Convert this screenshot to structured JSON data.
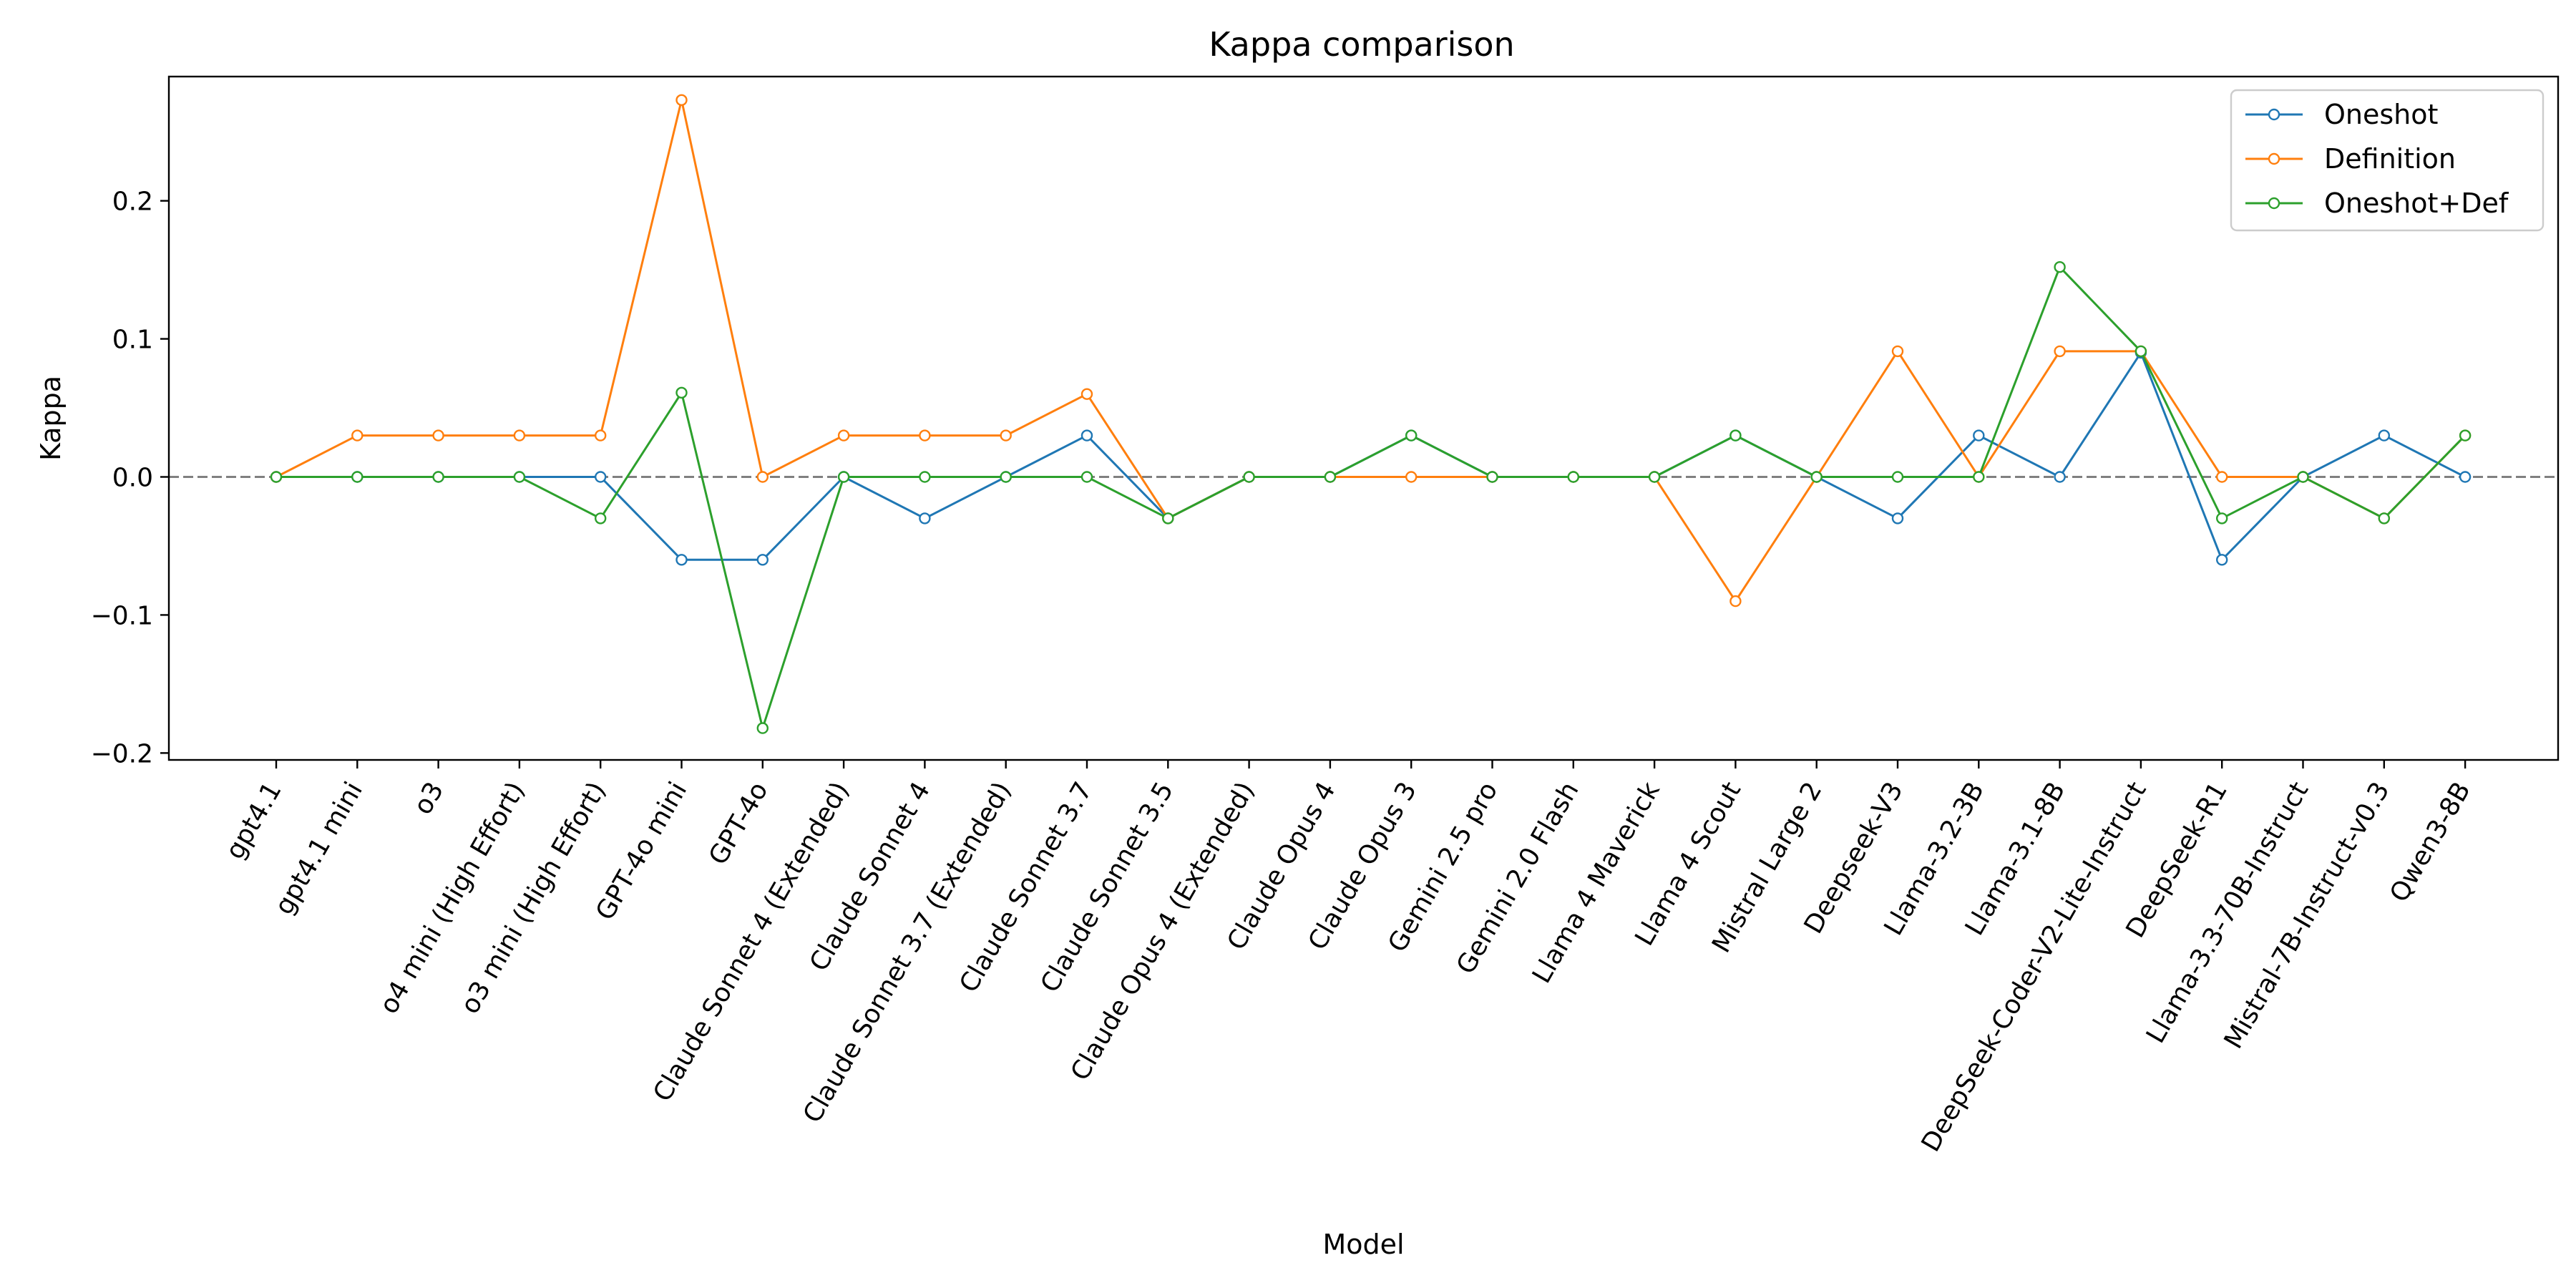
{
  "chart_data": {
    "type": "line",
    "title": "Kappa comparison",
    "xlabel": "Model",
    "ylabel": "Kappa",
    "ylim": [
      -0.205,
      0.29
    ],
    "yticks": [
      -0.2,
      -0.1,
      0.0,
      0.1,
      0.2
    ],
    "ytick_labels": [
      "−0.2",
      "−0.1",
      "0.0",
      "0.1",
      "0.2"
    ],
    "reference_line": {
      "y": 0.0,
      "style": "dashed",
      "color": "#808080"
    },
    "grid": false,
    "legend_position": "top-right",
    "categories": [
      "gpt4.1",
      "gpt4.1 mini",
      "o3",
      "o4 mini (High Effort)",
      "o3 mini (High Effort)",
      "GPT-4o mini",
      "GPT-4o",
      "Claude Sonnet 4 (Extended)",
      "Claude Sonnet 4",
      "Claude Sonnet 3.7 (Extended)",
      "Claude Sonnet 3.7",
      "Claude Sonnet 3.5",
      "Claude Opus 4 (Extended)",
      "Claude Opus 4",
      "Claude Opus 3",
      "Gemini 2.5 pro",
      "Gemini 2.0 Flash",
      "Llama 4 Maverick",
      "Llama 4 Scout",
      "Mistral Large 2",
      "Deepseek-V3",
      "Llama-3.2-3B",
      "Llama-3.1-8B",
      "DeepSeek-Coder-V2-Lite-Instruct",
      "DeepSeek-R1",
      "Llama-3.3-70B-Instruct",
      "Mistral-7B-Instruct-v0.3",
      "Qwen3-8B"
    ],
    "series": [
      {
        "name": "Oneshot",
        "color": "#1f77b4",
        "values": [
          0,
          0,
          0,
          0,
          0,
          -0.06,
          -0.06,
          0,
          -0.03,
          0,
          0.03,
          -0.03,
          0,
          0,
          0.03,
          0,
          0,
          0,
          0.03,
          0,
          -0.03,
          0.03,
          0,
          0.09,
          -0.06,
          0,
          0.03,
          0
        ]
      },
      {
        "name": "Definition",
        "color": "#ff7f0e",
        "values": [
          0,
          0.03,
          0.03,
          0.03,
          0.03,
          0.273,
          0,
          0.03,
          0.03,
          0.03,
          0.06,
          -0.03,
          0,
          0,
          0,
          0,
          0,
          0,
          -0.09,
          0,
          0.091,
          0,
          0.091,
          0.091,
          0,
          0,
          -0.03,
          0.03
        ]
      },
      {
        "name": "Oneshot+Def",
        "color": "#2ca02c",
        "values": [
          0,
          0,
          0,
          0,
          -0.03,
          0.061,
          -0.182,
          0,
          0,
          0,
          0,
          -0.03,
          0,
          0,
          0.03,
          0,
          0,
          0,
          0.03,
          0,
          0,
          0,
          0.152,
          0.091,
          -0.03,
          0,
          -0.03,
          0.03
        ]
      }
    ]
  }
}
